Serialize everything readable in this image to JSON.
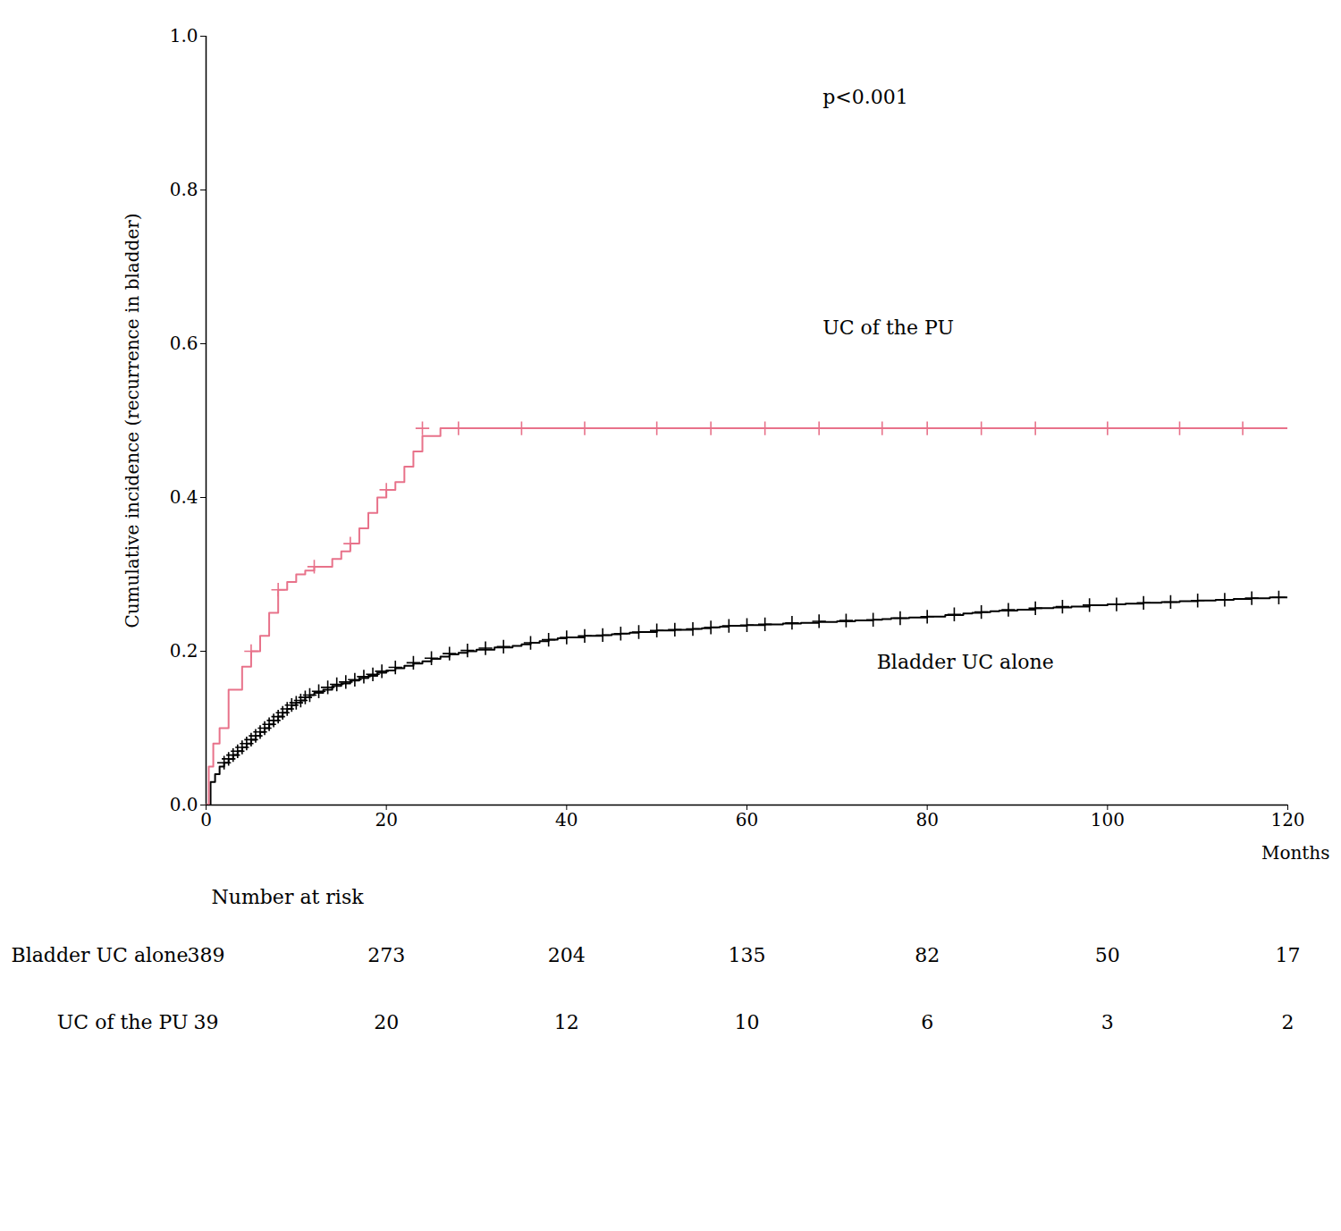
{
  "chart_data": {
    "type": "step",
    "ylabel": "Cumulative incidence (recurrence in bladder)",
    "xlabel": "Months",
    "xlim": [
      0,
      120
    ],
    "ylim": [
      0.0,
      1.0
    ],
    "xticks": [
      0,
      20,
      40,
      60,
      80,
      100,
      120
    ],
    "yticks": [
      {
        "value": 0.0,
        "label": "0.0"
      },
      0.2,
      0.4,
      0.6,
      0.8,
      {
        "value": 1.0,
        "label": "1.0"
      }
    ],
    "grid": false,
    "annotations": [
      "p<0.001"
    ],
    "series": [
      {
        "name": "Bladder UC alone",
        "color": "#000000",
        "x": [
          0,
          0.5,
          1.0,
          1.5,
          2.0,
          2.5,
          3.0,
          3.5,
          4.0,
          4.5,
          5.0,
          5.5,
          6.0,
          6.5,
          7.0,
          7.5,
          8.0,
          8.5,
          9.0,
          9.5,
          10.0,
          10.5,
          11.0,
          11.5,
          12.0,
          13.0,
          14.0,
          15.0,
          16.0,
          17.0,
          18.0,
          19.0,
          20.0,
          21.0,
          22.0,
          23.0,
          24.0,
          25.0,
          26.0,
          27.0,
          28.0,
          29.0,
          30.0,
          32.0,
          34.0,
          35.0,
          36.0,
          37.0,
          38.0,
          39.0,
          40.0,
          42.0,
          44.0,
          45.0,
          46.0,
          47.0,
          48.0,
          50.0,
          52.0,
          54.0,
          55.0,
          56.0,
          57.0,
          58.0,
          60.0,
          62.0,
          64.0,
          66.0,
          68.0,
          70.0,
          72.0,
          74.0,
          75.0,
          76.0,
          78.0,
          80.0,
          82.0,
          84.0,
          85.0,
          86.0,
          87.0,
          88.0,
          90.0,
          92.0,
          94.0,
          96.0,
          98.0,
          100.0,
          102.0,
          104.0,
          106.0,
          108.0,
          110.0,
          112.0,
          114.0,
          116.0,
          118.0,
          120.0
        ],
        "values": [
          0.0,
          0.03,
          0.04,
          0.05,
          0.055,
          0.06,
          0.065,
          0.07,
          0.075,
          0.08,
          0.085,
          0.09,
          0.095,
          0.1,
          0.105,
          0.11,
          0.115,
          0.12,
          0.125,
          0.13,
          0.133,
          0.136,
          0.14,
          0.143,
          0.146,
          0.15,
          0.155,
          0.158,
          0.162,
          0.165,
          0.168,
          0.172,
          0.175,
          0.178,
          0.181,
          0.184,
          0.187,
          0.19,
          0.193,
          0.196,
          0.198,
          0.2,
          0.202,
          0.205,
          0.207,
          0.209,
          0.211,
          0.213,
          0.215,
          0.217,
          0.218,
          0.22,
          0.221,
          0.222,
          0.223,
          0.224,
          0.225,
          0.227,
          0.228,
          0.229,
          0.23,
          0.231,
          0.232,
          0.233,
          0.234,
          0.235,
          0.236,
          0.237,
          0.238,
          0.239,
          0.24,
          0.241,
          0.242,
          0.243,
          0.244,
          0.245,
          0.247,
          0.249,
          0.25,
          0.251,
          0.252,
          0.253,
          0.254,
          0.256,
          0.257,
          0.258,
          0.26,
          0.261,
          0.262,
          0.263,
          0.264,
          0.265,
          0.266,
          0.267,
          0.268,
          0.269,
          0.27,
          0.27
        ],
        "censor_x": [
          2.0,
          2.5,
          3.0,
          3.5,
          4.0,
          4.5,
          5.0,
          5.5,
          6.0,
          6.5,
          7.0,
          7.5,
          8.0,
          8.5,
          9.0,
          9.5,
          10.0,
          10.5,
          11.0,
          11.5,
          12.5,
          13.5,
          14.5,
          15.5,
          16.5,
          17.5,
          18.5,
          19.5,
          21.0,
          23.0,
          25.0,
          27.0,
          29.0,
          31.0,
          33.0,
          36.0,
          38.0,
          40.0,
          42.0,
          44.0,
          46.0,
          48.0,
          50.0,
          52.0,
          54.0,
          56.0,
          58.0,
          60.0,
          62.0,
          65.0,
          68.0,
          71.0,
          74.0,
          77.0,
          80.0,
          83.0,
          86.0,
          89.0,
          92.0,
          95.0,
          98.0,
          101.0,
          104.0,
          107.0,
          110.0,
          113.0,
          116.0,
          119.0
        ],
        "censor_values": [
          0.055,
          0.06,
          0.065,
          0.07,
          0.075,
          0.08,
          0.085,
          0.09,
          0.095,
          0.1,
          0.105,
          0.11,
          0.115,
          0.12,
          0.125,
          0.13,
          0.133,
          0.136,
          0.14,
          0.143,
          0.148,
          0.153,
          0.157,
          0.16,
          0.163,
          0.167,
          0.17,
          0.174,
          0.179,
          0.185,
          0.191,
          0.197,
          0.201,
          0.204,
          0.206,
          0.211,
          0.215,
          0.218,
          0.22,
          0.221,
          0.223,
          0.225,
          0.227,
          0.228,
          0.229,
          0.231,
          0.233,
          0.234,
          0.235,
          0.237,
          0.239,
          0.24,
          0.241,
          0.243,
          0.245,
          0.248,
          0.251,
          0.254,
          0.256,
          0.258,
          0.26,
          0.261,
          0.263,
          0.264,
          0.266,
          0.267,
          0.269,
          0.27
        ]
      },
      {
        "name": "UC of the PU",
        "color": "#e8728a",
        "x": [
          0,
          0.3,
          0.8,
          1.5,
          2.5,
          4.0,
          5.0,
          6.0,
          7.0,
          8.0,
          9.0,
          10.0,
          11.0,
          12.0,
          14.0,
          15.0,
          16.0,
          17.0,
          18.0,
          19.0,
          20.0,
          21.0,
          22.0,
          23.0,
          24.0,
          26.0,
          30.0,
          35.0,
          40.0,
          45.0,
          50.0,
          55.0,
          58.0,
          60.0,
          65.0,
          70.0,
          72.0,
          75.0,
          80.0,
          82.0,
          85.0,
          90.0,
          95.0,
          100.0,
          105.0,
          110.0,
          115.0,
          120.0
        ],
        "values": [
          0.0,
          0.05,
          0.08,
          0.1,
          0.15,
          0.18,
          0.2,
          0.22,
          0.25,
          0.28,
          0.29,
          0.3,
          0.305,
          0.31,
          0.32,
          0.33,
          0.34,
          0.36,
          0.38,
          0.4,
          0.41,
          0.42,
          0.44,
          0.46,
          0.48,
          0.49,
          0.49,
          0.49,
          0.49,
          0.49,
          0.49,
          0.49,
          0.49,
          0.49,
          0.49,
          0.49,
          0.49,
          0.49,
          0.49,
          0.49,
          0.49,
          0.49,
          0.49,
          0.49,
          0.49,
          0.49,
          0.49,
          0.49
        ],
        "censor_x": [
          5.0,
          8.0,
          12.0,
          16.0,
          20.0,
          24.0,
          28.0,
          35.0,
          42.0,
          50.0,
          56.0,
          62.0,
          68.0,
          75.0,
          80.0,
          86.0,
          92.0,
          100.0,
          108.0,
          115.0
        ],
        "censor_values": [
          0.2,
          0.28,
          0.31,
          0.34,
          0.41,
          0.49,
          0.49,
          0.49,
          0.49,
          0.49,
          0.49,
          0.49,
          0.49,
          0.49,
          0.49,
          0.49,
          0.49,
          0.49,
          0.49,
          0.49
        ]
      }
    ],
    "number_at_risk": {
      "title": "Number at risk",
      "x": [
        0,
        20,
        40,
        60,
        80,
        100,
        120
      ],
      "rows": [
        {
          "name": "Bladder UC alone",
          "values": [
            389,
            273,
            204,
            135,
            82,
            50,
            17
          ]
        },
        {
          "name": "UC of the PU",
          "values": [
            39,
            20,
            12,
            10,
            6,
            3,
            2
          ]
        }
      ]
    }
  }
}
